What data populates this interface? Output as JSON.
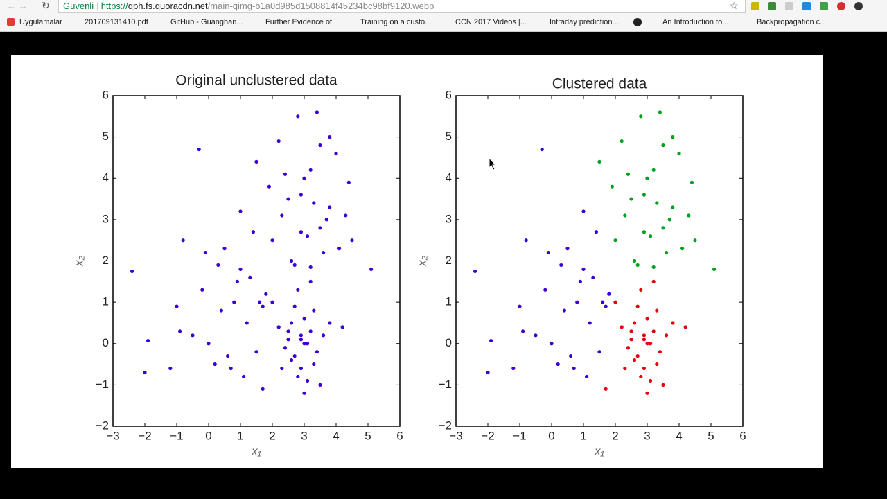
{
  "browser": {
    "secure_label": "Güvenli",
    "url_scheme": "https://",
    "url_host": "qph.fs.quoracdn.net",
    "url_path": "/main-qimg-b1a0d985d1508814f45234bc98bf9120.webp",
    "bookmarks": [
      "Uygulamalar",
      "201709131410.pdf",
      "GitHub - Guanghan...",
      "Further Evidence of...",
      "Training on a custo...",
      "CCN 2017 Videos |...",
      "Intraday prediction...",
      "An Introduction to...",
      "Backpropagation c..."
    ]
  },
  "chart_data": [
    {
      "type": "scatter",
      "title": "Original unclustered data",
      "xlabel": "x₁",
      "ylabel": "x₂",
      "xlim": [
        -3,
        6
      ],
      "ylim": [
        -2,
        6
      ],
      "xticks": [
        {
          "value": -3,
          "label": "−3"
        },
        {
          "value": -2,
          "label": "−2"
        },
        {
          "value": -1,
          "label": "−1"
        },
        0,
        1,
        2,
        3,
        4,
        5,
        6
      ],
      "yticks": [
        {
          "value": -2,
          "label": "−2"
        },
        {
          "value": -1,
          "label": "−1"
        },
        0,
        1,
        2,
        3,
        4,
        5,
        6
      ],
      "series": [
        {
          "color": "#3a00d6",
          "x": [
            -2.4,
            -1.9,
            -2.0,
            -1.2,
            -1.0,
            -0.8,
            -0.5,
            -0.3,
            -0.2,
            0.0,
            0.2,
            0.3,
            0.5,
            0.6,
            0.8,
            1.0,
            1.1,
            1.2,
            1.3,
            1.4,
            1.5,
            1.6,
            -0.9,
            0.4,
            0.9,
            1.7,
            -0.1,
            0.7,
            1.0,
            1.8,
            2.5,
            2.7,
            2.9,
            3.1,
            3.3,
            2.6,
            2.8,
            3.0,
            3.2,
            3.4,
            2.4,
            2.7,
            3.0,
            3.3,
            3.6,
            2.2,
            2.9,
            3.1,
            2.6,
            3.5,
            1.7,
            2.0,
            2.3,
            3.8,
            2.8,
            3.0,
            2.5,
            3.2,
            2.9,
            4.2,
            2.0,
            2.3,
            2.6,
            2.9,
            3.2,
            3.5,
            3.8,
            4.1,
            4.4,
            2.2,
            2.5,
            2.8,
            3.1,
            3.4,
            3.7,
            4.0,
            2.7,
            3.0,
            3.3,
            3.6,
            1.5,
            1.9,
            4.5,
            5.1,
            2.9,
            3.2,
            3.5,
            4.3,
            3.8,
            2.4
          ],
          "values": [
            1.75,
            0.07,
            -0.7,
            -0.6,
            0.9,
            2.5,
            0.2,
            4.7,
            1.3,
            0.0,
            -0.5,
            1.9,
            2.3,
            -0.3,
            1.0,
            3.2,
            -0.8,
            0.5,
            1.6,
            2.7,
            -0.2,
            1.0,
            0.3,
            0.8,
            1.5,
            0.9,
            2.2,
            -0.6,
            1.8,
            1.2,
            0.1,
            -0.3,
            0.2,
            0.0,
            -0.5,
            0.5,
            -0.8,
            0.6,
            0.3,
            -0.2,
            -0.1,
            0.9,
            -1.2,
            0.8,
            0.2,
            0.4,
            -0.6,
            -0.9,
            -0.4,
            -1.0,
            -1.1,
            1.0,
            -0.6,
            0.5,
            1.3,
            0.0,
            0.3,
            1.5,
            0.1,
            0.4,
            2.5,
            3.1,
            2.0,
            3.6,
            4.2,
            2.8,
            3.3,
            2.3,
            3.9,
            4.9,
            3.5,
            5.5,
            2.6,
            5.6,
            3.0,
            4.6,
            1.9,
            4.0,
            3.4,
            2.2,
            4.4,
            3.8,
            2.5,
            1.8,
            2.7,
            1.85,
            4.8,
            3.1,
            5.0,
            4.1
          ]
        }
      ]
    },
    {
      "type": "scatter",
      "title": "Clustered data",
      "xlabel": "x₁",
      "ylabel": "x₂",
      "xlim": [
        -3,
        6
      ],
      "ylim": [
        -2,
        6
      ],
      "xticks": [
        {
          "value": -3,
          "label": "−3"
        },
        {
          "value": -2,
          "label": "−2"
        },
        {
          "value": -1,
          "label": "−1"
        },
        0,
        1,
        2,
        3,
        4,
        5,
        6
      ],
      "yticks": [
        {
          "value": -2,
          "label": "−2"
        },
        {
          "value": -1,
          "label": "−1"
        },
        0,
        1,
        2,
        3,
        4,
        5,
        6
      ],
      "series": [
        {
          "color": "#3a00d6",
          "x": [
            -2.4,
            -1.9,
            -2.0,
            -1.2,
            -1.0,
            -0.8,
            -0.5,
            -0.3,
            -0.2,
            0.0,
            0.2,
            0.3,
            0.5,
            0.6,
            0.8,
            1.0,
            1.1,
            1.2,
            1.3,
            1.4,
            1.5,
            1.6,
            -0.9,
            0.4,
            0.9,
            1.7,
            -0.1,
            0.7,
            1.0,
            1.8
          ],
          "values": [
            1.75,
            0.07,
            -0.7,
            -0.6,
            0.9,
            2.5,
            0.2,
            4.7,
            1.3,
            0.0,
            -0.5,
            1.9,
            2.3,
            -0.3,
            1.0,
            3.2,
            -0.8,
            0.5,
            1.6,
            2.7,
            -0.2,
            1.0,
            0.3,
            0.8,
            1.5,
            0.9,
            2.2,
            -0.6,
            1.8,
            1.2
          ]
        },
        {
          "color": "#e8000b",
          "x": [
            2.5,
            2.7,
            2.9,
            3.1,
            3.3,
            2.6,
            2.8,
            3.0,
            3.2,
            3.4,
            2.4,
            2.7,
            3.0,
            3.3,
            3.6,
            2.2,
            2.9,
            3.1,
            2.6,
            3.5,
            1.7,
            2.0,
            2.3,
            3.8,
            2.8,
            3.0,
            2.5,
            3.2,
            2.9,
            4.2
          ],
          "values": [
            0.1,
            -0.3,
            0.2,
            0.0,
            -0.5,
            0.5,
            -0.8,
            0.6,
            0.3,
            -0.2,
            -0.1,
            0.9,
            -1.2,
            0.8,
            0.2,
            0.4,
            -0.6,
            -0.9,
            -0.4,
            -1.0,
            -1.1,
            1.0,
            -0.6,
            0.5,
            1.3,
            0.0,
            0.3,
            1.5,
            0.1,
            0.4
          ]
        },
        {
          "color": "#00a01e",
          "x": [
            2.0,
            2.3,
            2.6,
            2.9,
            3.2,
            3.5,
            3.8,
            4.1,
            4.4,
            2.2,
            2.5,
            2.8,
            3.1,
            3.4,
            3.7,
            4.0,
            2.7,
            3.0,
            3.3,
            3.6,
            1.5,
            1.9,
            4.5,
            5.1,
            2.9,
            3.2,
            3.5,
            4.3,
            3.8,
            2.4
          ],
          "values": [
            2.5,
            3.1,
            2.0,
            3.6,
            4.2,
            2.8,
            3.3,
            2.3,
            3.9,
            4.9,
            3.5,
            5.5,
            2.6,
            5.6,
            3.0,
            4.6,
            1.9,
            4.0,
            3.4,
            2.2,
            4.4,
            3.8,
            2.5,
            1.8,
            2.7,
            1.85,
            4.8,
            3.1,
            5.0,
            4.1
          ]
        }
      ]
    }
  ]
}
